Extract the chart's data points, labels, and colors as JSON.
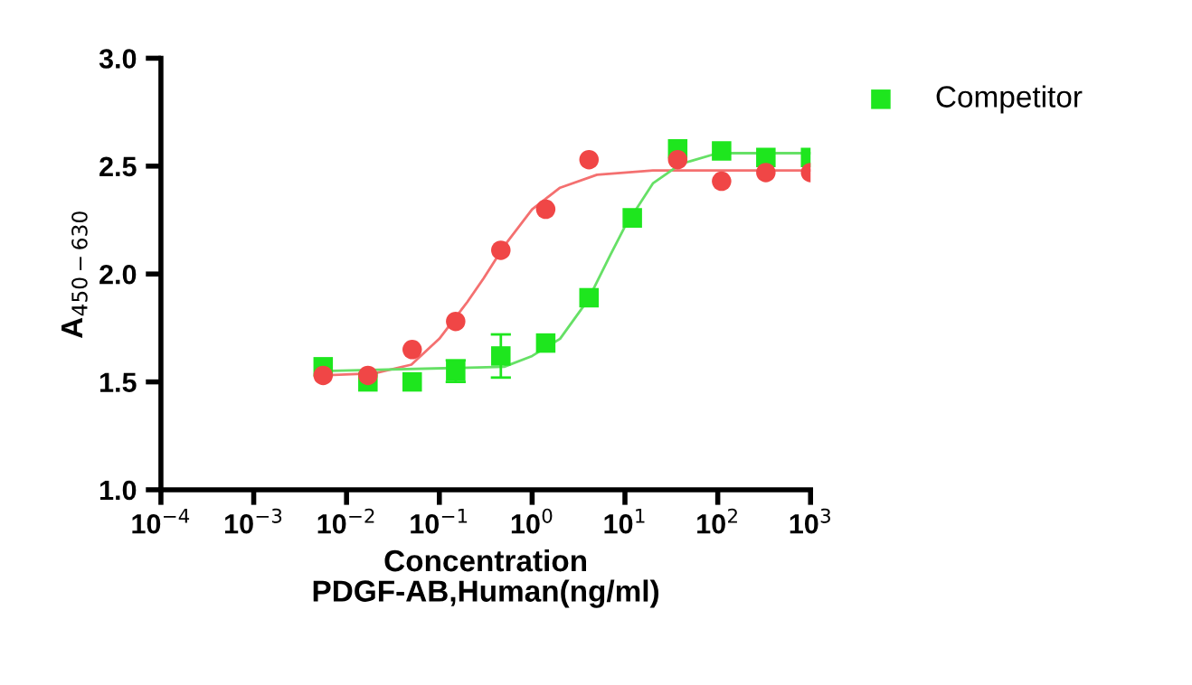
{
  "chart_data": {
    "type": "scatter",
    "xlabel": "Concentration\nPDGF-AB,Human(ng/ml)",
    "ylabel": "A$_{450−630}$",
    "log": "x",
    "grid": false,
    "legend": "top right",
    "xlim": [
      0.0001,
      1000
    ],
    "ylim": [
      1.0,
      3.0
    ],
    "xticks": [
      {
        "value": 0.0001,
        "label": "10$^{−4}$"
      },
      {
        "value": 0.001,
        "label": "10$^{−3}$"
      },
      {
        "value": 0.01,
        "label": "10$^{−2}$"
      },
      {
        "value": 0.1,
        "label": "10$^{−1}$"
      },
      {
        "value": 1,
        "label": "10$^{0}$"
      },
      {
        "value": 10,
        "label": "10$^{1}$"
      },
      {
        "value": 100,
        "label": "10$^{2}$"
      },
      {
        "value": 1000,
        "label": "10$^{3}$"
      }
    ],
    "yticks": [
      {
        "value": 1.0,
        "label": "1.0"
      },
      {
        "value": 1.5,
        "label": "1.5"
      },
      {
        "value": 2.0,
        "label": "2.0"
      },
      {
        "value": 2.5,
        "label": "2.5"
      },
      {
        "value": 3.0,
        "label": "3.0"
      }
    ],
    "x": [
      0.0056,
      0.017,
      0.051,
      0.15,
      0.46,
      1.4,
      4.1,
      12,
      37,
      110,
      330,
      1000
    ],
    "series": [
      {
        "type": "line",
        "color": "#f47070",
        "marker": "none",
        "x": [
          0.0056,
          0.02,
          0.05,
          0.1,
          0.2,
          0.3,
          0.5,
          1,
          2,
          5,
          20,
          1000
        ],
        "values": [
          1.53,
          1.54,
          1.58,
          1.7,
          1.87,
          1.98,
          2.13,
          2.3,
          2.4,
          2.46,
          2.48,
          2.48
        ]
      },
      {
        "type": "line",
        "color": "#66e066",
        "marker": "none",
        "x": [
          0.0056,
          0.5,
          1,
          2,
          4,
          7,
          10,
          20,
          40,
          100,
          1000
        ],
        "values": [
          1.55,
          1.57,
          1.62,
          1.7,
          1.88,
          2.09,
          2.22,
          2.42,
          2.51,
          2.56,
          2.56
        ]
      },
      {
        "color": "#f04646",
        "marker": "circle",
        "values": [
          1.53,
          1.53,
          1.65,
          1.78,
          2.11,
          2.3,
          2.53,
          null,
          2.53,
          2.43,
          2.47,
          2.47
        ]
      },
      {
        "name": "Competitor",
        "color": "#1ee61e",
        "marker": "square",
        "values": [
          1.57,
          1.5,
          1.5,
          1.55,
          1.62,
          1.68,
          1.89,
          2.26,
          2.58,
          2.57,
          2.54,
          2.54
        ],
        "errors": [
          null,
          null,
          null,
          0.05,
          0.1,
          null,
          null,
          null,
          null,
          null,
          null,
          null
        ]
      }
    ]
  }
}
